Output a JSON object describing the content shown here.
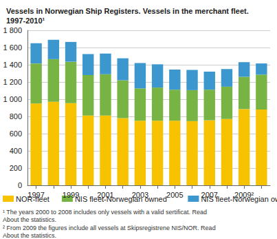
{
  "chart_data": {
    "type": "bar",
    "title": "Vessels in Norwegian Ship Registers. Vessels in the merchant fleet. 1997-2010¹",
    "categories": [
      "1997",
      null,
      "1999",
      null,
      "2001",
      null,
      "2003",
      null,
      "2005",
      null,
      "2007",
      null,
      "2009²",
      null
    ],
    "series": [
      {
        "name": "NOR-fleet",
        "color": "#f7c200",
        "values": [
          950,
          970,
          955,
          810,
          810,
          780,
          750,
          750,
          750,
          745,
          755,
          770,
          885,
          880
        ]
      },
      {
        "name": "NIS fleet-Norwegian owned",
        "color": "#78b443",
        "values": [
          465,
          495,
          480,
          470,
          480,
          440,
          375,
          385,
          360,
          360,
          355,
          375,
          375,
          405
        ]
      },
      {
        "name": "NIS fleet-Norwegian owned",
        "color": "#3c97cf",
        "values": [
          235,
          225,
          230,
          245,
          240,
          255,
          295,
          270,
          235,
          235,
          210,
          205,
          170,
          130
        ]
      }
    ],
    "stacked": true,
    "grid": true,
    "ylim": [
      0,
      1800
    ],
    "yticks": [
      0,
      200,
      400,
      600,
      800,
      {
        "value": 1000,
        "label": "1 000"
      },
      {
        "value": 1200,
        "label": "1 200"
      },
      {
        "value": 1400,
        "label": "1 400"
      },
      {
        "value": 1600,
        "label": "1 600"
      },
      {
        "value": 1800,
        "label": "1 800"
      }
    ],
    "notes": [
      "¹ The years 2000 to 2008 includes only vessels with a valid sertificat. Read About the statistics.",
      "² From 2009 the figures include all vessels at Skipsregistrene NIS/NOR. Read About the statistics."
    ]
  }
}
